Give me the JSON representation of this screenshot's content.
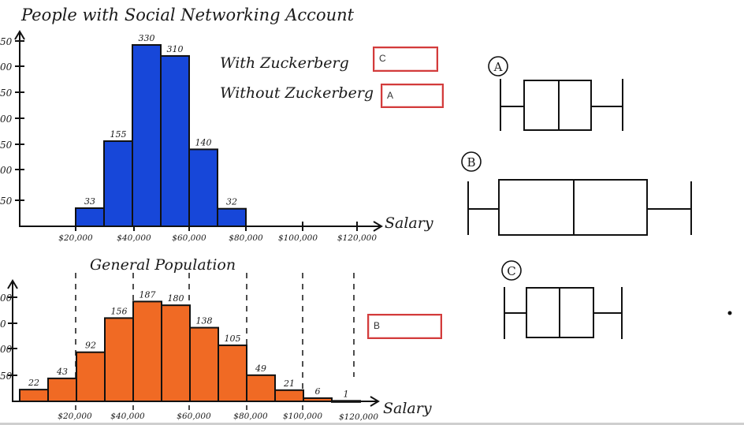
{
  "top": {
    "title": "People with Social Networking Account",
    "xlabel": "Salary",
    "legend_with": "With Zuckerberg",
    "legend_without": "Without Zuckerberg",
    "ytick_labels": [
      "50",
      "00",
      "50",
      "00",
      "50",
      "00",
      "50"
    ],
    "xtick_labels": [
      "$20,000",
      "$40,000",
      "$60,000",
      "$80,000",
      "$100,000",
      "$120,000"
    ],
    "bar_color": "#1747d9"
  },
  "bottom": {
    "title": "General Population",
    "xlabel": "Salary",
    "ytick_labels": [
      "00",
      "0",
      "00",
      "50"
    ],
    "xtick_labels": [
      "$20,000",
      "$40,000",
      "$60,000",
      "$80,000",
      "$100,000",
      "$120,000"
    ],
    "bar_color": "#f06a24"
  },
  "answers": {
    "with_zuckerberg": "C",
    "without_zuckerberg": "A",
    "general_population": "B"
  },
  "boxplot_labels": [
    "A",
    "B",
    "C"
  ],
  "chart_data": [
    {
      "type": "bar",
      "title": "People with Social Networking Account",
      "xlabel": "Salary",
      "categories": [
        "$10,000-$20,000",
        "$20,000-$30,000",
        "$30,000-$40,000",
        "$40,000-$50,000",
        "$50,000-$60,000",
        "$60,000-$70,000"
      ],
      "values": [
        33,
        155,
        330,
        310,
        140,
        32
      ],
      "color": "#1747d9"
    },
    {
      "type": "bar",
      "title": "General Population",
      "xlabel": "Salary",
      "categories": [
        "$0-$10,000",
        "$10,000-$20,000",
        "$20,000-$30,000",
        "$30,000-$40,000",
        "$40,000-$50,000",
        "$50,000-$60,000",
        "$60,000-$70,000",
        "$70,000-$80,000",
        "$80,000-$90,000",
        "$90,000-$100,000",
        "$100,000-$110,000",
        "$110,000-$120,000"
      ],
      "values": [
        22,
        43,
        92,
        156,
        187,
        180,
        138,
        105,
        49,
        21,
        6,
        1
      ],
      "color": "#f06a24"
    }
  ]
}
